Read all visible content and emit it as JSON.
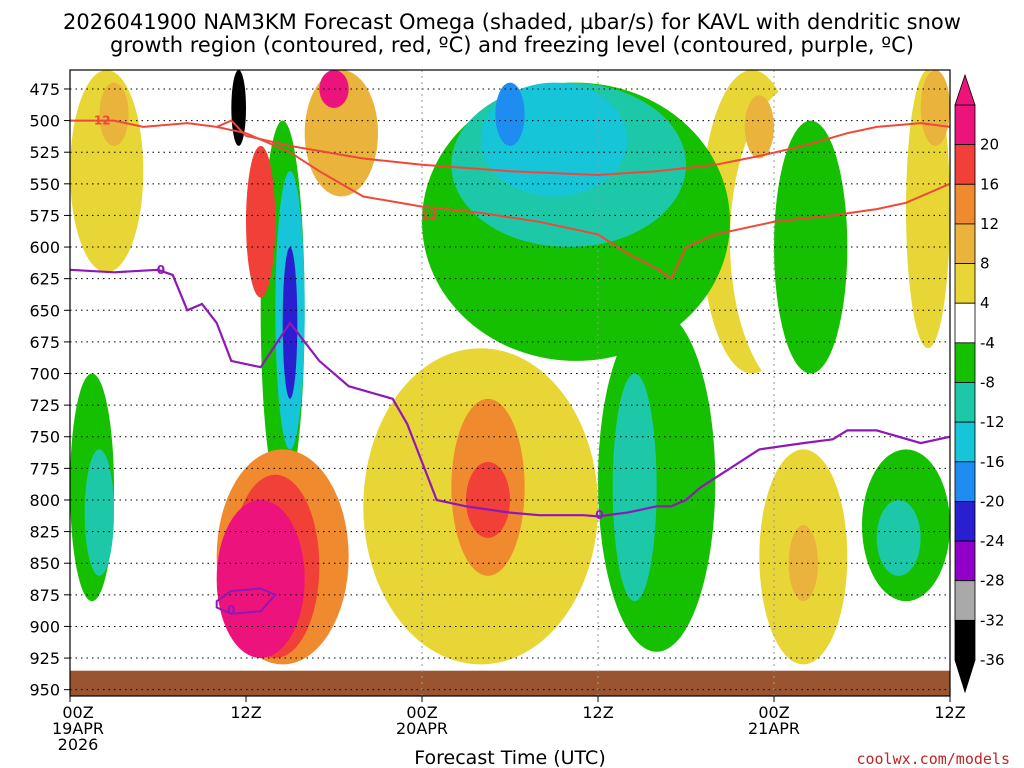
{
  "chart_data": {
    "type": "heatmap",
    "title_line1": "2026041900 NAM3KM Forecast Omega (shaded, µbar/s) for KAVL with dendritic snow",
    "title_line2": "growth region (contoured, red, ºC) and freezing level (contoured, purple, ºC)",
    "xlabel": "Forecast Time (UTC)",
    "credit": "coolwx.com/models",
    "y_axis": {
      "variable": "pressure (mb)",
      "inverted": true,
      "range": [
        460,
        955
      ],
      "ticks": [
        475,
        500,
        525,
        550,
        575,
        600,
        625,
        650,
        675,
        700,
        725,
        750,
        775,
        800,
        825,
        850,
        875,
        900,
        925,
        950
      ],
      "tick_labels": [
        "475",
        "500",
        "525",
        "550",
        "575",
        "600",
        "625",
        "650",
        "675",
        "700",
        "725",
        "750",
        "775",
        "800",
        "825",
        "850",
        "875",
        "900",
        "925",
        "950"
      ]
    },
    "x_axis": {
      "variable": "forecast hour",
      "range": [
        0,
        60
      ],
      "ticks": [
        0,
        12,
        24,
        36,
        48,
        60
      ],
      "tick_labels": [
        [
          "00Z",
          "19APR",
          "2026"
        ],
        [
          "12Z"
        ],
        [
          "00Z",
          "20APR"
        ],
        [
          "12Z"
        ],
        [
          "00Z",
          "21APR"
        ],
        [
          "12Z"
        ]
      ],
      "vertical_gridlines": [
        24,
        36,
        48
      ]
    },
    "grid": "dotted horizontal at each pressure tick",
    "colorbar": {
      "levels": [
        -36,
        -32,
        -28,
        -24,
        -20,
        -16,
        -12,
        -8,
        -4,
        4,
        8,
        12,
        16,
        20
      ],
      "tick_labels": [
        "20",
        "16",
        "12",
        "8",
        "4",
        "-4",
        "-8",
        "-12",
        "-16",
        "-20",
        "-24",
        "-28",
        "-32",
        "-36"
      ],
      "colors": [
        "#000000",
        "#a9a9a9",
        "#9000c8",
        "#2a1fd0",
        "#1e8cf0",
        "#17c5d8",
        "#1cc8a8",
        "#14c000",
        "#ffffff",
        "#e8d637",
        "#eab33c",
        "#f08a2e",
        "#f04038",
        "#ec137c"
      ],
      "colors_low_to_high_note": ""
    },
    "snow_growth_contours": {
      "color": "#f04838",
      "label": "12",
      "upper": [
        [
          0,
          500
        ],
        [
          3,
          500
        ],
        [
          5,
          505
        ],
        [
          8,
          502
        ],
        [
          10,
          505
        ],
        [
          11,
          500
        ],
        [
          12,
          512
        ],
        [
          15,
          520
        ],
        [
          20,
          530
        ],
        [
          24,
          535
        ],
        [
          30,
          540
        ],
        [
          36,
          543
        ],
        [
          40,
          540
        ],
        [
          44,
          535
        ],
        [
          47,
          528
        ],
        [
          50,
          520
        ],
        [
          53,
          510
        ],
        [
          55,
          505
        ],
        [
          58,
          502
        ],
        [
          60,
          505
        ]
      ],
      "lower": [
        [
          12,
          510
        ],
        [
          15,
          525
        ],
        [
          17,
          540
        ],
        [
          20,
          560
        ],
        [
          24,
          568
        ],
        [
          28,
          573
        ],
        [
          32,
          580
        ],
        [
          36,
          590
        ],
        [
          38,
          605
        ],
        [
          40,
          617
        ],
        [
          41,
          625
        ],
        [
          42,
          600
        ],
        [
          44,
          590
        ],
        [
          48,
          580
        ],
        [
          52,
          575
        ],
        [
          55,
          570
        ],
        [
          57,
          565
        ],
        [
          60,
          550
        ]
      ],
      "lower_left_branch": [
        [
          10,
          505
        ],
        [
          12,
          510
        ]
      ]
    },
    "freezing_level_contour": {
      "color": "#9018b8",
      "label": "0",
      "points": [
        [
          0,
          618
        ],
        [
          3,
          620
        ],
        [
          6,
          618
        ],
        [
          7,
          622
        ],
        [
          8,
          650
        ],
        [
          9,
          645
        ],
        [
          10,
          660
        ],
        [
          11,
          690
        ],
        [
          13,
          695
        ],
        [
          15,
          660
        ],
        [
          17,
          690
        ],
        [
          19,
          710
        ],
        [
          22,
          720
        ],
        [
          23,
          740
        ],
        [
          24,
          770
        ],
        [
          25,
          800
        ],
        [
          27,
          805
        ],
        [
          30,
          810
        ],
        [
          32,
          812
        ],
        [
          35,
          812
        ],
        [
          36,
          813
        ],
        [
          38,
          810
        ],
        [
          40,
          805
        ],
        [
          41,
          805
        ],
        [
          42,
          800
        ],
        [
          43,
          790
        ],
        [
          45,
          775
        ],
        [
          47,
          760
        ],
        [
          50,
          755
        ],
        [
          52,
          752
        ],
        [
          53,
          745
        ],
        [
          55,
          745
        ],
        [
          58,
          755
        ],
        [
          60,
          750
        ]
      ],
      "small_loop_points": [
        [
          10,
          880
        ],
        [
          11,
          872
        ],
        [
          13,
          870
        ],
        [
          14,
          875
        ],
        [
          13,
          888
        ],
        [
          11,
          890
        ],
        [
          10,
          885
        ]
      ]
    },
    "ground_band": {
      "color": "#9a5530",
      "pressure_range": [
        935,
        955
      ]
    },
    "omega_regions": [
      {
        "level": 4,
        "hours": [
          0,
          5
        ],
        "p": [
          460,
          620
        ],
        "desc": "yellow weak rising band"
      },
      {
        "level": 8,
        "hours": [
          2,
          4
        ],
        "p": [
          470,
          520
        ]
      },
      {
        "level": -8,
        "hours": [
          0,
          3
        ],
        "p": [
          700,
          880
        ]
      },
      {
        "level": -12,
        "hours": [
          1,
          3
        ],
        "p": [
          760,
          860
        ]
      },
      {
        "level": -4,
        "hours": [
          10,
          15
        ],
        "p": [
          600,
          820
        ]
      },
      {
        "level": -8,
        "hours": [
          13,
          16
        ],
        "p": [
          500,
          800
        ]
      },
      {
        "level": -16,
        "hours": [
          14,
          16
        ],
        "p": [
          540,
          760
        ]
      },
      {
        "level": -24,
        "hours": [
          14.5,
          15.5
        ],
        "p": [
          600,
          720
        ]
      },
      {
        "level": -36,
        "hours": [
          11,
          12
        ],
        "p": [
          460,
          520
        ]
      },
      {
        "level": 16,
        "hours": [
          12,
          14
        ],
        "p": [
          520,
          640
        ]
      },
      {
        "level": 20,
        "hours": [
          10,
          16
        ],
        "p": [
          800,
          925
        ]
      },
      {
        "level": 16,
        "hours": [
          11,
          17
        ],
        "p": [
          780,
          925
        ]
      },
      {
        "level": 12,
        "hours": [
          10,
          19
        ],
        "p": [
          760,
          930
        ]
      },
      {
        "level": 20,
        "hours": [
          17,
          19
        ],
        "p": [
          460,
          490
        ]
      },
      {
        "level": 8,
        "hours": [
          16,
          21
        ],
        "p": [
          460,
          560
        ]
      },
      {
        "level": 12,
        "hours": [
          26,
          31
        ],
        "p": [
          720,
          860
        ]
      },
      {
        "level": 16,
        "hours": [
          27,
          30
        ],
        "p": [
          770,
          830
        ]
      },
      {
        "level": 4,
        "hours": [
          20,
          36
        ],
        "p": [
          680,
          930
        ]
      },
      {
        "level": -4,
        "hours": [
          24,
          46
        ],
        "p": [
          460,
          620
        ]
      },
      {
        "level": -8,
        "hours": [
          24,
          45
        ],
        "p": [
          470,
          690
        ]
      },
      {
        "level": -12,
        "hours": [
          26,
          42
        ],
        "p": [
          470,
          600
        ]
      },
      {
        "level": -16,
        "hours": [
          28,
          38
        ],
        "p": [
          470,
          560
        ]
      },
      {
        "level": -20,
        "hours": [
          29,
          31
        ],
        "p": [
          470,
          520
        ]
      },
      {
        "level": -8,
        "hours": [
          36,
          44
        ],
        "p": [
          650,
          920
        ]
      },
      {
        "level": -12,
        "hours": [
          37,
          40
        ],
        "p": [
          700,
          880
        ]
      },
      {
        "level": 4,
        "hours": [
          43,
          50
        ],
        "p": [
          460,
          700
        ]
      },
      {
        "level": 8,
        "hours": [
          46,
          48
        ],
        "p": [
          480,
          530
        ]
      },
      {
        "level": -4,
        "hours": [
          45,
          55
        ],
        "p": [
          470,
          720
        ]
      },
      {
        "level": -8,
        "hours": [
          48,
          53
        ],
        "p": [
          500,
          700
        ]
      },
      {
        "level": 4,
        "hours": [
          57,
          60
        ],
        "p": [
          460,
          680
        ]
      },
      {
        "level": 8,
        "hours": [
          58,
          60
        ],
        "p": [
          460,
          520
        ]
      },
      {
        "level": -8,
        "hours": [
          54,
          60
        ],
        "p": [
          760,
          880
        ]
      },
      {
        "level": -12,
        "hours": [
          55,
          58
        ],
        "p": [
          800,
          860
        ]
      },
      {
        "level": 4,
        "hours": [
          47,
          53
        ],
        "p": [
          760,
          930
        ]
      },
      {
        "level": 8,
        "hours": [
          49,
          51
        ],
        "p": [
          820,
          880
        ]
      }
    ]
  }
}
